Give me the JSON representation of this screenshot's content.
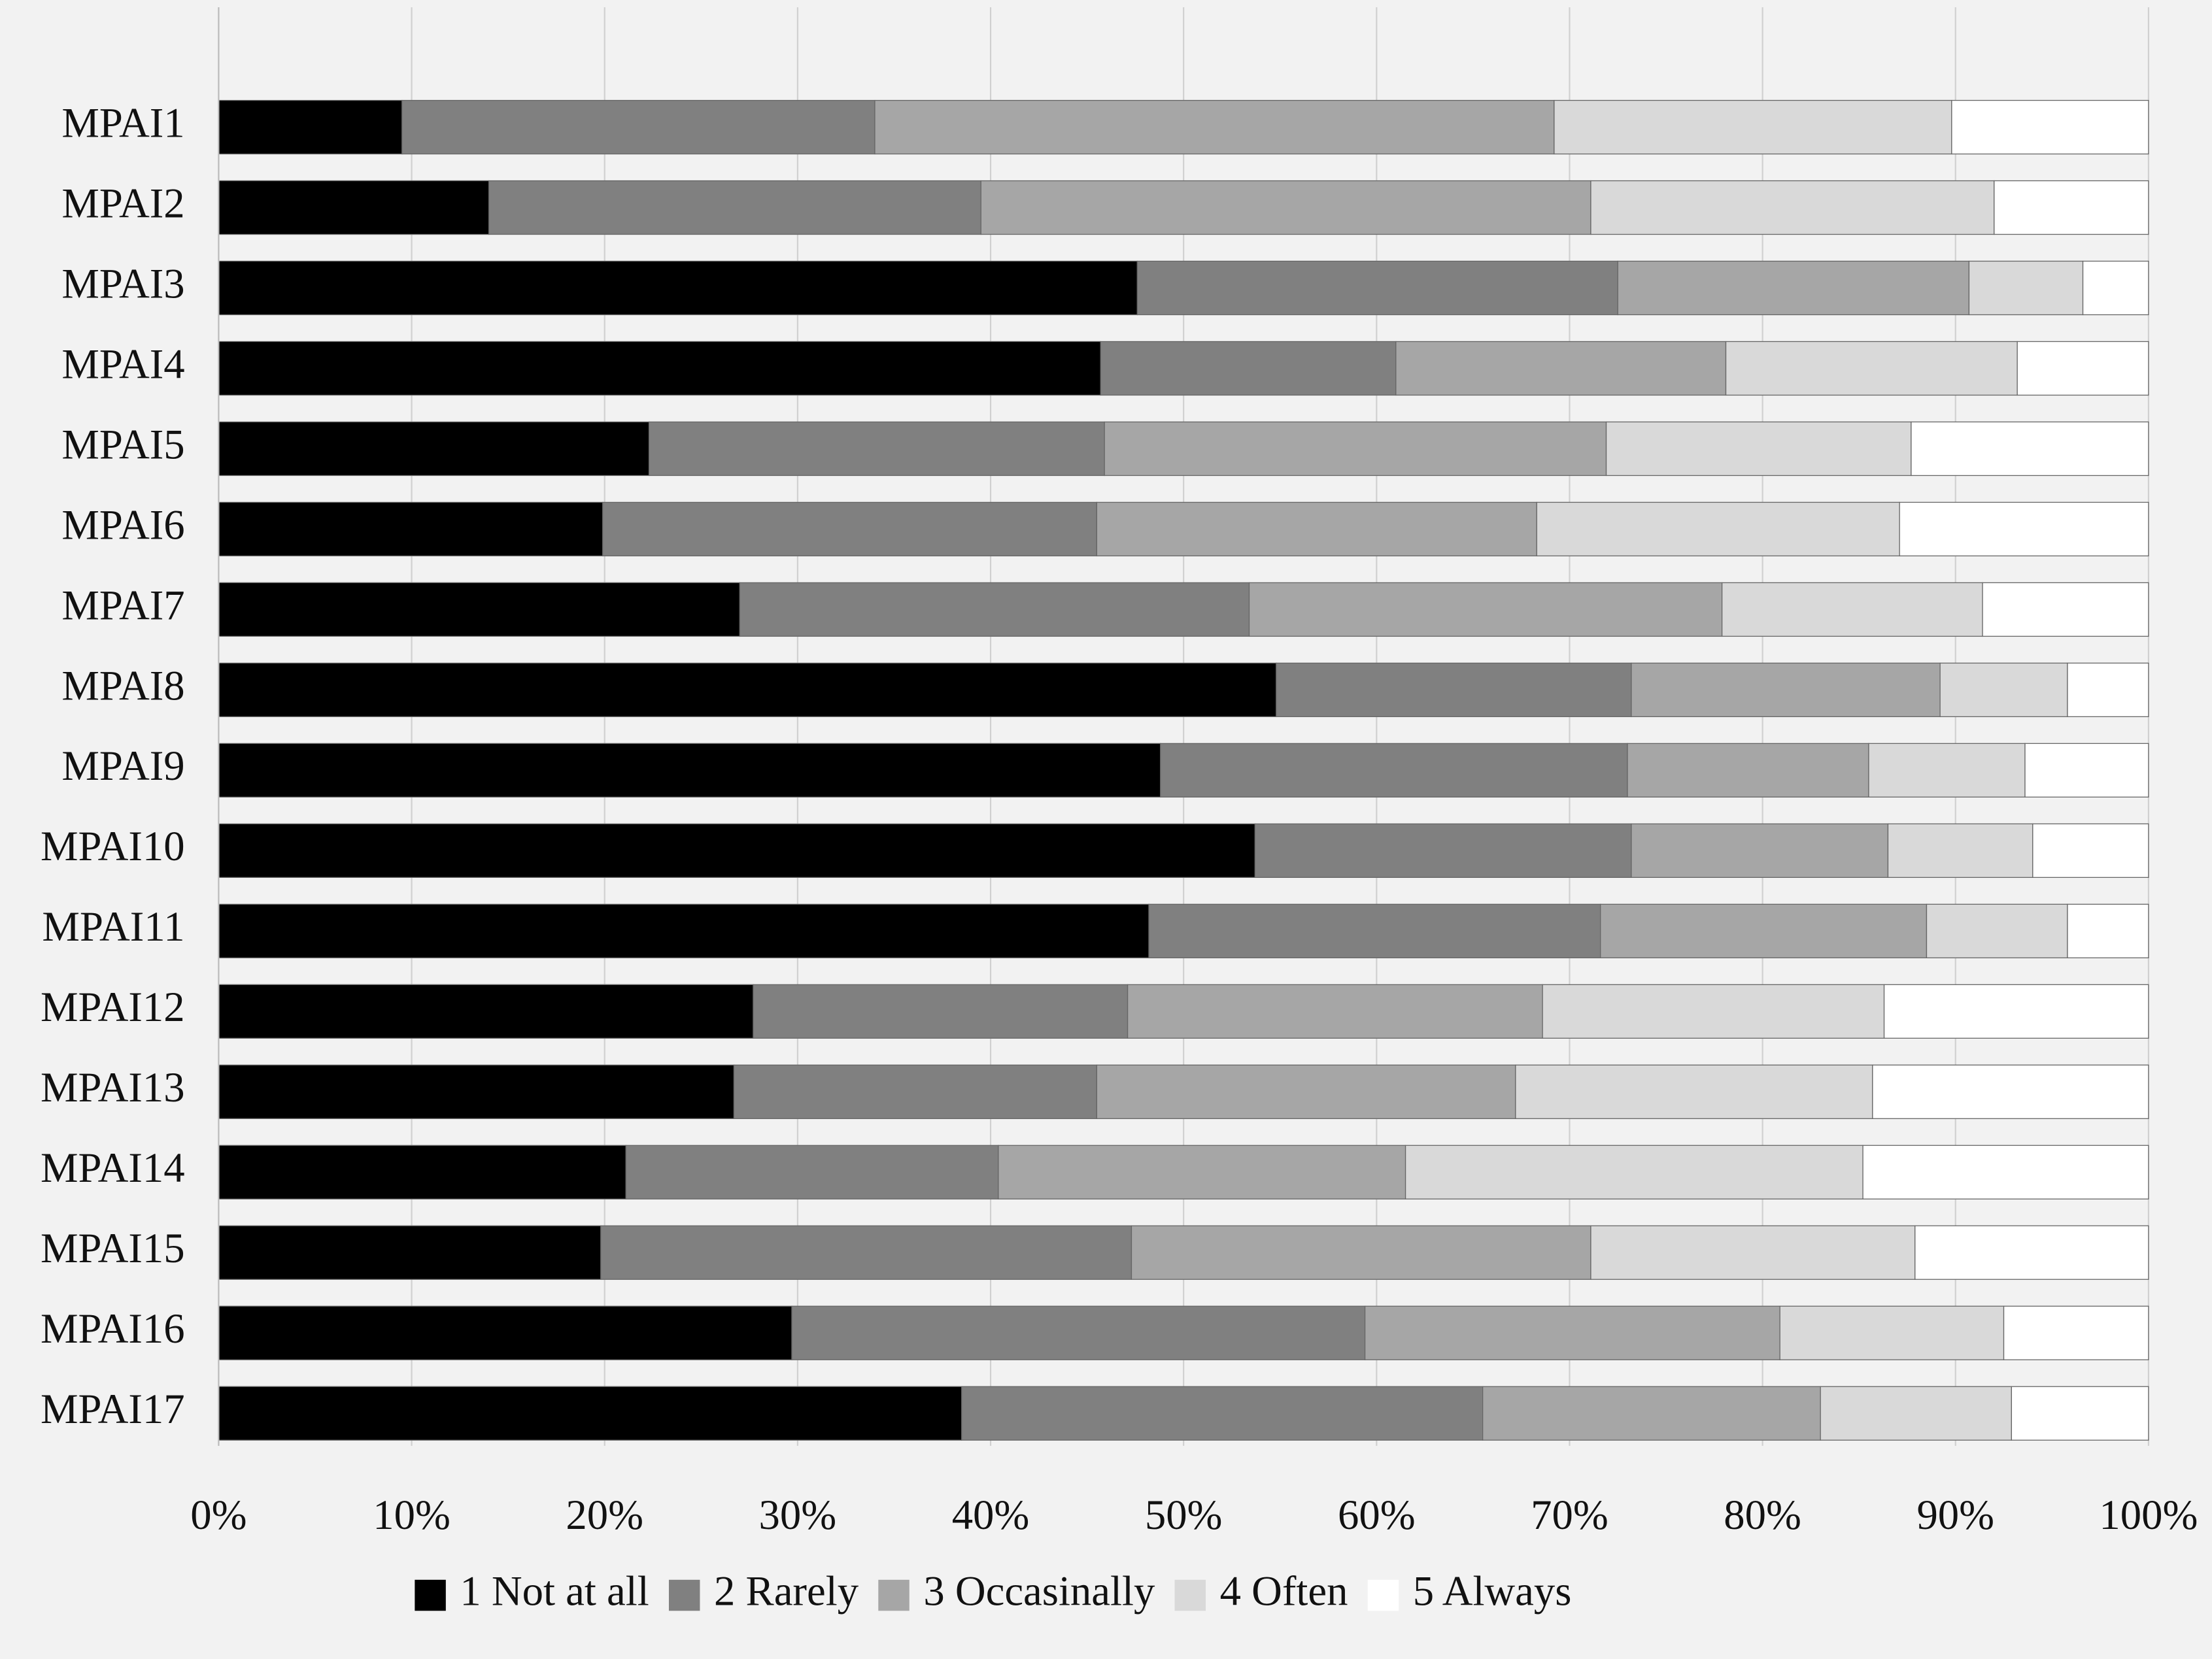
{
  "chart_data": {
    "type": "stacked-bar-horizontal",
    "categories": [
      "MPAI1",
      "MPAI2",
      "MPAI3",
      "MPAI4",
      "MPAI5",
      "MPAI6",
      "MPAI7",
      "MPAI8",
      "MPAI9",
      "MPAI10",
      "MPAI11",
      "MPAI12",
      "MPAI13",
      "MPAI14",
      "MPAI15",
      "MPAI16",
      "MPAI17"
    ],
    "series": [
      {
        "name": "1 Not at all",
        "color": "#000000",
        "values": [
          9.5,
          14.0,
          47.6,
          45.7,
          22.3,
          19.9,
          27.0,
          54.8,
          48.8,
          53.7,
          48.2,
          27.7,
          26.7,
          21.1,
          19.8,
          29.7,
          38.5
        ]
      },
      {
        "name": "2 Rarely",
        "color": "#808080",
        "values": [
          24.5,
          25.5,
          24.9,
          15.3,
          23.6,
          25.6,
          26.4,
          18.4,
          24.2,
          19.5,
          23.4,
          19.4,
          18.8,
          19.3,
          27.5,
          29.7,
          27.0
        ]
      },
      {
        "name": "3 Occasinally",
        "color": "#a6a6a6",
        "values": [
          35.2,
          31.6,
          18.2,
          17.1,
          26.0,
          22.8,
          24.5,
          16.0,
          12.5,
          13.3,
          16.9,
          21.5,
          21.7,
          21.1,
          23.8,
          21.5,
          17.5
        ]
      },
      {
        "name": "4 Often",
        "color": "#d9d9d9",
        "values": [
          20.6,
          20.9,
          5.9,
          15.1,
          15.8,
          18.8,
          13.5,
          6.6,
          8.1,
          7.5,
          7.3,
          17.7,
          18.5,
          23.7,
          16.8,
          11.6,
          9.9
        ]
      },
      {
        "name": "5 Always",
        "color": "#ffffff",
        "values": [
          10.2,
          8.0,
          3.4,
          6.8,
          12.3,
          12.9,
          8.6,
          4.2,
          6.4,
          6.0,
          4.2,
          13.7,
          14.3,
          14.8,
          12.1,
          7.5,
          7.1
        ]
      }
    ],
    "xlim": [
      0,
      100
    ],
    "xticks": [
      {
        "value": 0,
        "label": "0%"
      },
      {
        "value": 10,
        "label": "10%"
      },
      {
        "value": 20,
        "label": "20%"
      },
      {
        "value": 30,
        "label": "30%"
      },
      {
        "value": 40,
        "label": "40%"
      },
      {
        "value": 50,
        "label": "50%"
      },
      {
        "value": 60,
        "label": "60%"
      },
      {
        "value": 70,
        "label": "70%"
      },
      {
        "value": 80,
        "label": "80%"
      },
      {
        "value": 90,
        "label": "90%"
      },
      {
        "value": 100,
        "label": "100%"
      }
    ],
    "grid": true,
    "legend": "bottom"
  }
}
